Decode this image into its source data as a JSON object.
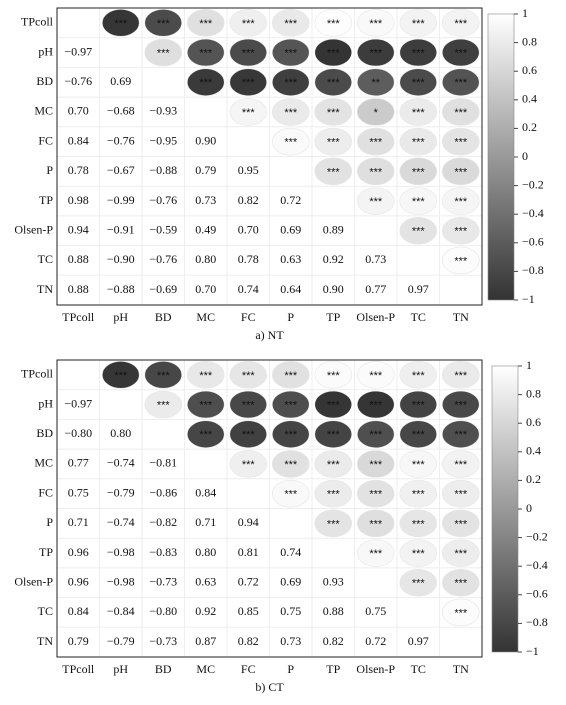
{
  "chart_data": [
    {
      "type": "correlation",
      "title": "a) NT",
      "variables": [
        "TPcoll",
        "pH",
        "BD",
        "MC",
        "FC",
        "P",
        "TP",
        "Olsen-P",
        "TC",
        "TN"
      ],
      "values": [
        [],
        [
          -0.97
        ],
        [
          -0.76,
          0.69
        ],
        [
          0.7,
          -0.68,
          -0.93
        ],
        [
          0.84,
          -0.76,
          -0.95,
          0.9
        ],
        [
          0.78,
          -0.67,
          -0.88,
          0.79,
          0.95
        ],
        [
          0.98,
          -0.99,
          -0.76,
          0.73,
          0.82,
          0.72
        ],
        [
          0.94,
          -0.91,
          -0.59,
          0.49,
          0.7,
          0.69,
          0.89
        ],
        [
          0.88,
          -0.9,
          -0.76,
          0.8,
          0.78,
          0.63,
          0.92,
          0.73
        ],
        [
          0.88,
          -0.88,
          -0.69,
          0.7,
          0.74,
          0.64,
          0.9,
          0.77,
          0.97
        ]
      ],
      "value_labels": [
        [],
        [
          "−0.97"
        ],
        [
          "−0.76",
          "0.69"
        ],
        [
          "0.70",
          "−0.68",
          "−0.93"
        ],
        [
          "0.84",
          "−0.76",
          "−0.95",
          "0.90"
        ],
        [
          "0.78",
          "−0.67",
          "−0.88",
          "0.79",
          "0.95"
        ],
        [
          "0.98",
          "−0.99",
          "−0.76",
          "0.73",
          "0.82",
          "0.72"
        ],
        [
          "0.94",
          "−0.91",
          "−0.59",
          "0.49",
          "0.70",
          "0.69",
          "0.89"
        ],
        [
          "0.88",
          "−0.90",
          "−0.76",
          "0.80",
          "0.78",
          "0.63",
          "0.92",
          "0.73"
        ],
        [
          "0.88",
          "−0.88",
          "−0.69",
          "0.70",
          "0.74",
          "0.64",
          "0.90",
          "0.77",
          "0.97"
        ]
      ],
      "significance": [
        [
          "***",
          "***",
          "***",
          "***",
          "***",
          "***",
          "***",
          "***",
          "***"
        ],
        [
          "***",
          "***",
          "***",
          "***",
          "***",
          "***",
          "***",
          "***"
        ],
        [
          "***",
          "***",
          "***",
          "***",
          "**",
          "***",
          "***"
        ],
        [
          "***",
          "***",
          "***",
          "*",
          "***",
          "***"
        ],
        [
          "***",
          "***",
          "***",
          "***",
          "***"
        ],
        [
          "***",
          "***",
          "***",
          "***"
        ],
        [
          "***",
          "***",
          "***"
        ],
        [
          "***",
          "***"
        ],
        [
          "***"
        ],
        []
      ],
      "clim": [
        -1,
        1
      ],
      "cticks": [
        1,
        0.8,
        0.6,
        0.4,
        0.2,
        0,
        {
          "value": -0.2,
          "label": "−0.2"
        },
        {
          "value": -0.4,
          "label": "−0.4"
        },
        {
          "value": -0.6,
          "label": "−0.6"
        },
        {
          "value": -0.8,
          "label": "−0.8"
        },
        {
          "value": -1,
          "label": "−1"
        }
      ],
      "colors": [
        "#333333",
        "#ffffff"
      ]
    },
    {
      "type": "correlation",
      "title": "b) CT",
      "variables": [
        "TPcoll",
        "pH",
        "BD",
        "MC",
        "FC",
        "P",
        "TP",
        "Olsen-P",
        "TC",
        "TN"
      ],
      "values": [
        [],
        [
          -0.97
        ],
        [
          -0.8,
          0.8
        ],
        [
          0.77,
          -0.74,
          -0.81
        ],
        [
          0.75,
          -0.79,
          -0.86,
          0.84
        ],
        [
          0.71,
          -0.74,
          -0.82,
          0.71,
          0.94
        ],
        [
          0.96,
          -0.98,
          -0.83,
          0.8,
          0.81,
          0.74
        ],
        [
          0.96,
          -0.98,
          -0.73,
          0.63,
          0.72,
          0.69,
          0.93
        ],
        [
          0.84,
          -0.84,
          -0.8,
          0.92,
          0.85,
          0.75,
          0.88,
          0.75
        ],
        [
          0.79,
          -0.79,
          -0.73,
          0.87,
          0.82,
          0.73,
          0.82,
          0.72,
          0.97
        ]
      ],
      "value_labels": [
        [],
        [
          "−0.97"
        ],
        [
          "−0.80",
          "0.80"
        ],
        [
          "0.77",
          "−0.74",
          "−0.81"
        ],
        [
          "0.75",
          "−0.79",
          "−0.86",
          "0.84"
        ],
        [
          "0.71",
          "−0.74",
          "−0.82",
          "0.71",
          "0.94"
        ],
        [
          "0.96",
          "−0.98",
          "−0.83",
          "0.80",
          "0.81",
          "0.74"
        ],
        [
          "0.96",
          "−0.98",
          "−0.73",
          "0.63",
          "0.72",
          "0.69",
          "0.93"
        ],
        [
          "0.84",
          "−0.84",
          "−0.80",
          "0.92",
          "0.85",
          "0.75",
          "0.88",
          "0.75"
        ],
        [
          "0.79",
          "−0.79",
          "−0.73",
          "0.87",
          "0.82",
          "0.73",
          "0.82",
          "0.72",
          "0.97"
        ]
      ],
      "significance": [
        [
          "***",
          "***",
          "***",
          "***",
          "***",
          "***",
          "***",
          "***",
          "***"
        ],
        [
          "***",
          "***",
          "***",
          "***",
          "***",
          "***",
          "***",
          "***"
        ],
        [
          "***",
          "***",
          "***",
          "***",
          "***",
          "***",
          "***"
        ],
        [
          "***",
          "***",
          "***",
          "***",
          "***",
          "***"
        ],
        [
          "***",
          "***",
          "***",
          "***",
          "***"
        ],
        [
          "***",
          "***",
          "***",
          "***"
        ],
        [
          "***",
          "***",
          "***"
        ],
        [
          "***",
          "***"
        ],
        [
          "***"
        ],
        []
      ],
      "clim": [
        -1,
        1
      ],
      "cticks": [
        1,
        0.8,
        0.6,
        0.4,
        0.2,
        0,
        {
          "value": -0.2,
          "label": "−0.2"
        },
        {
          "value": -0.4,
          "label": "−0.4"
        },
        {
          "value": -0.6,
          "label": "−0.6"
        },
        {
          "value": -0.8,
          "label": "−0.8"
        },
        {
          "value": -1,
          "label": "−1"
        }
      ],
      "colors": [
        "#333333",
        "#ffffff"
      ]
    }
  ]
}
